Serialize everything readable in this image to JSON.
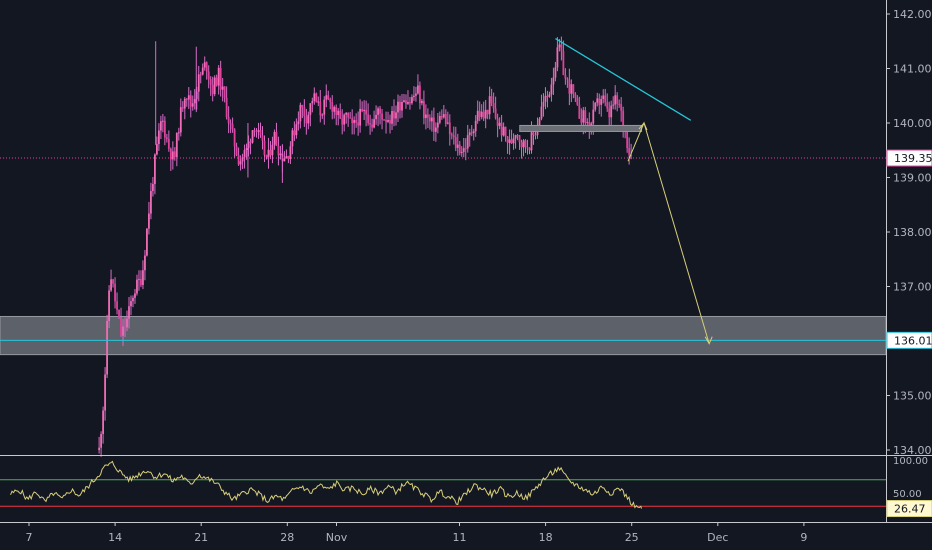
{
  "colors": {
    "background": "#131722",
    "candle": "#e0429a",
    "candle_light": "#f06db5",
    "wick": "#d86cc8",
    "last_price_line": "#e0429a",
    "target_line": "#26c6da",
    "zone_fill": "#6b6e75",
    "trendline": "#26c6da",
    "arrow": "#d8cf78",
    "rsi_line": "#d8cf78",
    "rsi_upper": "#4caf50",
    "rsi_lower": "#f23645",
    "axis_text": "#b2b5be",
    "tag_bg": "#ffffff"
  },
  "chart_data": {
    "type": "candlestick",
    "ylim": [
      133.85,
      142.3
    ],
    "price_ticks": [
      "142.000",
      "141.000",
      "140.000",
      "139.000",
      "138.000",
      "137.000",
      "136.000",
      "135.000",
      "134.000"
    ],
    "price_tick_values": [
      142,
      141,
      140,
      139,
      138,
      137,
      136,
      135,
      134
    ],
    "x_ticks": [
      {
        "label": "7",
        "day": 7
      },
      {
        "label": "14",
        "day": 14
      },
      {
        "label": "21",
        "day": 21
      },
      {
        "label": "28",
        "day": 28
      },
      {
        "label": "Nov",
        "day": 32
      },
      {
        "label": "11",
        "day": 42
      },
      {
        "label": "18",
        "day": 49
      },
      {
        "label": "25",
        "day": 56
      },
      {
        "label": "Dec",
        "day": 63
      },
      {
        "label": "9",
        "day": 70
      }
    ],
    "price_path": [
      [
        12.7,
        134.0
      ],
      [
        13.1,
        135.0
      ],
      [
        13.4,
        136.5
      ],
      [
        13.6,
        137.3
      ],
      [
        14.1,
        136.6
      ],
      [
        14.5,
        136.1
      ],
      [
        15.0,
        136.4
      ],
      [
        15.5,
        136.9
      ],
      [
        16.2,
        137.2
      ],
      [
        16.8,
        138.5
      ],
      [
        17.3,
        139.4
      ],
      [
        17.8,
        140.1
      ],
      [
        18.3,
        139.6
      ],
      [
        18.8,
        139.3
      ],
      [
        19.2,
        140.0
      ],
      [
        19.7,
        140.6
      ],
      [
        20.2,
        140.3
      ],
      [
        20.8,
        140.8
      ],
      [
        21.4,
        141.1
      ],
      [
        21.9,
        140.6
      ],
      [
        22.4,
        140.9
      ],
      [
        22.9,
        140.4
      ],
      [
        23.5,
        139.8
      ],
      [
        24.1,
        139.3
      ],
      [
        24.7,
        139.5
      ],
      [
        25.3,
        140.0
      ],
      [
        25.9,
        139.6
      ],
      [
        26.4,
        139.3
      ],
      [
        26.9,
        139.8
      ],
      [
        27.5,
        139.4
      ],
      [
        28.0,
        139.4
      ],
      [
        28.6,
        139.9
      ],
      [
        29.1,
        140.3
      ],
      [
        29.6,
        140.1
      ],
      [
        30.1,
        140.5
      ],
      [
        30.7,
        140.2
      ],
      [
        31.2,
        140.4
      ],
      [
        31.8,
        140.3
      ],
      [
        32.3,
        140.0
      ],
      [
        32.8,
        140.1
      ],
      [
        33.3,
        139.9
      ],
      [
        33.8,
        140.1
      ],
      [
        34.4,
        140.2
      ],
      [
        34.9,
        140.0
      ],
      [
        35.4,
        140.2
      ],
      [
        35.9,
        140.1
      ],
      [
        36.5,
        140.1
      ],
      [
        37.0,
        140.3
      ],
      [
        37.5,
        140.5
      ],
      [
        38.0,
        140.4
      ],
      [
        38.6,
        140.6
      ],
      [
        39.1,
        140.2
      ],
      [
        39.6,
        140.0
      ],
      [
        40.1,
        139.9
      ],
      [
        40.6,
        140.2
      ],
      [
        41.2,
        139.8
      ],
      [
        41.7,
        139.6
      ],
      [
        42.3,
        139.5
      ],
      [
        42.9,
        139.8
      ],
      [
        43.5,
        140.2
      ],
      [
        44.0,
        140.1
      ],
      [
        44.5,
        140.4
      ],
      [
        45.1,
        140.0
      ],
      [
        45.6,
        139.8
      ],
      [
        46.1,
        139.6
      ],
      [
        46.6,
        139.9
      ],
      [
        47.1,
        139.6
      ],
      [
        47.6,
        139.6
      ],
      [
        48.1,
        139.8
      ],
      [
        48.7,
        140.3
      ],
      [
        49.2,
        140.5
      ],
      [
        49.7,
        141.0
      ],
      [
        50.1,
        141.4
      ],
      [
        50.6,
        140.8
      ],
      [
        51.1,
        140.6
      ],
      [
        51.6,
        140.2
      ],
      [
        52.1,
        140.1
      ],
      [
        52.6,
        139.9
      ],
      [
        53.1,
        140.3
      ],
      [
        53.6,
        140.5
      ],
      [
        54.1,
        140.1
      ],
      [
        54.6,
        140.4
      ],
      [
        55.0,
        140.3
      ],
      [
        55.4,
        139.9
      ],
      [
        55.8,
        139.5
      ],
      [
        56.1,
        139.357
      ]
    ],
    "last_price": "139.357",
    "target_price": "136.012",
    "target_value": 136.012,
    "zone": [
      135.75,
      136.45
    ],
    "resistance_bar": {
      "from_day": 46.9,
      "to_day": 56.8,
      "price": 139.9
    },
    "trendline": {
      "from": [
        49.8,
        141.55
      ],
      "to": [
        60.8,
        140.05
      ]
    },
    "projection_arrow": [
      [
        55.7,
        139.3
      ],
      [
        57.0,
        140.0
      ],
      [
        62.3,
        135.95
      ]
    ],
    "rsi": {
      "ticks": [
        "100.00",
        "50.00"
      ],
      "tick_values": [
        100,
        50
      ],
      "upper_level": 70,
      "lower_level": 30,
      "last_value": "26.47",
      "value_now": 26.47,
      "ylim": [
        25,
        105
      ],
      "values": [
        [
          5.5,
          48
        ],
        [
          6.2,
          55
        ],
        [
          6.9,
          40
        ],
        [
          7.6,
          52
        ],
        [
          8.3,
          36
        ],
        [
          9.0,
          50
        ],
        [
          9.7,
          40
        ],
        [
          10.4,
          55
        ],
        [
          11.1,
          46
        ],
        [
          11.8,
          60
        ],
        [
          12.5,
          74
        ],
        [
          13.2,
          90
        ],
        [
          13.8,
          95
        ],
        [
          14.5,
          80
        ],
        [
          15.2,
          70
        ],
        [
          15.9,
          78
        ],
        [
          16.6,
          85
        ],
        [
          17.3,
          74
        ],
        [
          18.0,
          80
        ],
        [
          18.7,
          68
        ],
        [
          19.4,
          76
        ],
        [
          20.1,
          62
        ],
        [
          20.8,
          78
        ],
        [
          21.5,
          72
        ],
        [
          22.2,
          65
        ],
        [
          22.9,
          52
        ],
        [
          23.6,
          40
        ],
        [
          24.3,
          48
        ],
        [
          25.0,
          56
        ],
        [
          25.7,
          48
        ],
        [
          26.4,
          38
        ],
        [
          27.1,
          45
        ],
        [
          27.8,
          40
        ],
        [
          28.5,
          55
        ],
        [
          29.2,
          60
        ],
        [
          29.9,
          50
        ],
        [
          30.6,
          62
        ],
        [
          31.3,
          55
        ],
        [
          32.0,
          65
        ],
        [
          32.7,
          54
        ],
        [
          33.4,
          58
        ],
        [
          34.1,
          48
        ],
        [
          34.8,
          56
        ],
        [
          35.5,
          50
        ],
        [
          36.2,
          60
        ],
        [
          36.9,
          52
        ],
        [
          37.6,
          66
        ],
        [
          38.3,
          58
        ],
        [
          39.0,
          50
        ],
        [
          39.7,
          40
        ],
        [
          40.4,
          52
        ],
        [
          41.1,
          44
        ],
        [
          41.8,
          36
        ],
        [
          42.5,
          48
        ],
        [
          43.2,
          62
        ],
        [
          43.9,
          56
        ],
        [
          44.6,
          48
        ],
        [
          45.3,
          56
        ],
        [
          46.0,
          44
        ],
        [
          46.7,
          50
        ],
        [
          47.4,
          42
        ],
        [
          48.1,
          55
        ],
        [
          48.8,
          70
        ],
        [
          49.5,
          80
        ],
        [
          50.1,
          88
        ],
        [
          50.8,
          70
        ],
        [
          51.5,
          62
        ],
        [
          52.2,
          55
        ],
        [
          52.9,
          48
        ],
        [
          53.6,
          60
        ],
        [
          54.3,
          50
        ],
        [
          55.0,
          58
        ],
        [
          55.7,
          42
        ],
        [
          56.3,
          28
        ],
        [
          56.8,
          26.47
        ]
      ]
    }
  }
}
